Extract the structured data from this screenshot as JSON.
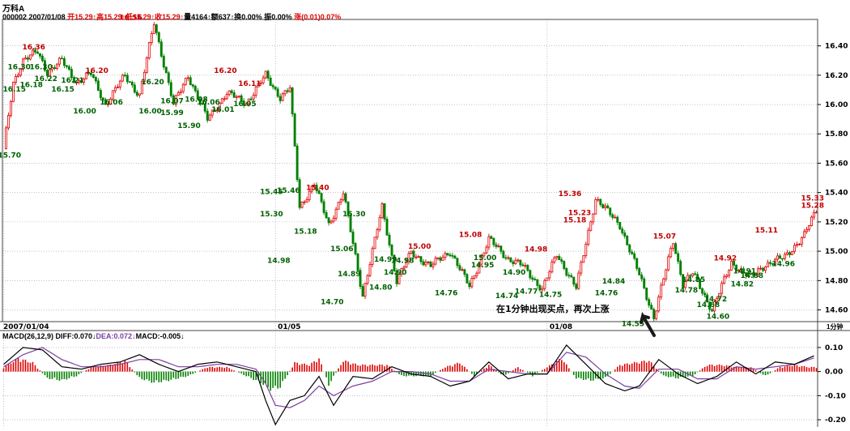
{
  "header": {
    "stock_name": "万科A",
    "line2_prefix": "000002 2007/01/08 ",
    "line2_quote": "开15.29↑高15.29↑低15.29↑收15.29↑",
    "line2_mid": "量4164↑额637↑换0.00% 振0.00% ",
    "line2_change": "涨(0.01)0.07%"
  },
  "macd_header": {
    "title": "MACD(26,12,9) ",
    "diff": "DIFF:0.070↓",
    "dea": "DEA:0.072↓",
    "macd": "MACD:-0.005↓"
  },
  "annotation": "在1分钟出现买点，再次上涨",
  "period_label": "1分钟",
  "colors": {
    "up": "#e00000",
    "down": "#008000",
    "diff_line": "#000000",
    "dea_line": "#7b3fa0",
    "grid": "#9a9a9a"
  },
  "chart_data": [
    {
      "type": "line",
      "title": "万科A 1分钟",
      "ylim": [
        14.52,
        16.58
      ],
      "y_ticks": [
        "16.40",
        "16.20",
        "16.00",
        "15.80",
        "15.60",
        "15.40",
        "15.20",
        "15.00",
        "14.80",
        "14.60"
      ],
      "y_tick_values": [
        16.4,
        16.2,
        16.0,
        15.8,
        15.6,
        15.4,
        15.2,
        15.0,
        14.8,
        14.6
      ],
      "x_ticks": [
        "2007/01/04",
        "01/05",
        "01/08"
      ],
      "x_tick_index": [
        0,
        112,
        224
      ],
      "n_bars": 336,
      "series": [
        {
          "x": [
            0,
            4,
            8,
            14,
            18,
            24,
            30,
            36,
            42,
            50,
            56,
            62,
            70,
            76,
            84,
            92,
            100,
            108,
            114,
            118,
            122,
            128,
            134,
            140,
            148,
            156,
            162,
            168,
            176,
            184,
            192,
            200,
            208,
            214,
            222,
            228,
            236,
            244,
            254,
            262,
            268,
            276,
            280,
            284,
            292,
            300,
            308,
            314,
            322,
            330,
            335
          ],
          "values": [
            15.7,
            16.15,
            16.3,
            16.36,
            16.22,
            16.3,
            16.15,
            16.21,
            16.0,
            16.2,
            16.06,
            16.56,
            16.0,
            16.2,
            15.9,
            16.08,
            16.01,
            16.2,
            16.05,
            16.11,
            15.3,
            15.46,
            15.18,
            15.4,
            14.7,
            15.3,
            14.8,
            14.99,
            14.9,
            15.0,
            14.76,
            15.08,
            14.95,
            14.9,
            14.74,
            14.98,
            14.75,
            15.36,
            15.18,
            14.84,
            14.55,
            15.07,
            14.78,
            14.85,
            14.6,
            14.92,
            14.82,
            14.91,
            14.96,
            15.11,
            15.28
          ]
        }
      ],
      "annotations": [
        {
          "x": 1,
          "value": 15.7,
          "label": "15.70"
        },
        {
          "x": 3,
          "value": 16.15,
          "label": "16.15"
        },
        {
          "x": 5,
          "value": 16.3,
          "label": "16.30"
        },
        {
          "x": 11,
          "value": 16.36,
          "label": "16.36"
        },
        {
          "x": 14,
          "value": 16.3,
          "label": "16.30"
        },
        {
          "x": 10,
          "value": 16.18,
          "label": "16.18"
        },
        {
          "x": 16,
          "value": 16.22,
          "label": "16.22"
        },
        {
          "x": 23,
          "value": 16.15,
          "label": "16.15"
        },
        {
          "x": 27,
          "value": 16.21,
          "label": "16.21"
        },
        {
          "x": 32,
          "value": 16.0,
          "label": "16.00"
        },
        {
          "x": 37,
          "value": 16.2,
          "label": "16.20"
        },
        {
          "x": 43,
          "value": 16.06,
          "label": "16.06"
        },
        {
          "x": 51,
          "value": 16.56,
          "label": "16.56"
        },
        {
          "x": 60,
          "value": 16.2,
          "label": "16.20"
        },
        {
          "x": 59,
          "value": 16.0,
          "label": "16.00"
        },
        {
          "x": 68,
          "value": 16.07,
          "label": "16.07"
        },
        {
          "x": 68,
          "value": 15.99,
          "label": "15.99"
        },
        {
          "x": 75,
          "value": 15.9,
          "label": "15.90"
        },
        {
          "x": 78,
          "value": 16.08,
          "label": "16.08"
        },
        {
          "x": 83,
          "value": 16.06,
          "label": "16.06"
        },
        {
          "x": 89,
          "value": 16.01,
          "label": "16.01"
        },
        {
          "x": 90,
          "value": 16.2,
          "label": "16.20"
        },
        {
          "x": 98,
          "value": 16.05,
          "label": "16.05"
        },
        {
          "x": 100,
          "value": 16.11,
          "label": "16.11"
        },
        {
          "x": 109,
          "value": 15.3,
          "label": "15.30"
        },
        {
          "x": 109,
          "value": 15.45,
          "label": "15.45"
        },
        {
          "x": 116,
          "value": 15.46,
          "label": "15.46"
        },
        {
          "x": 112,
          "value": 14.98,
          "label": "14.98"
        },
        {
          "x": 123,
          "value": 15.18,
          "label": "15.18"
        },
        {
          "x": 128,
          "value": 15.4,
          "label": "15.40"
        },
        {
          "x": 134,
          "value": 14.7,
          "label": "14.70"
        },
        {
          "x": 138,
          "value": 15.06,
          "label": "15.06"
        },
        {
          "x": 141,
          "value": 14.89,
          "label": "14.89"
        },
        {
          "x": 143,
          "value": 15.3,
          "label": "15.30"
        },
        {
          "x": 154,
          "value": 14.8,
          "label": "14.80"
        },
        {
          "x": 156,
          "value": 14.99,
          "label": "14.99"
        },
        {
          "x": 160,
          "value": 14.9,
          "label": "14.90"
        },
        {
          "x": 163,
          "value": 14.98,
          "label": "14.98"
        },
        {
          "x": 170,
          "value": 15.0,
          "label": "15.00"
        },
        {
          "x": 181,
          "value": 14.76,
          "label": "14.76"
        },
        {
          "x": 191,
          "value": 15.08,
          "label": "15.08"
        },
        {
          "x": 196,
          "value": 14.95,
          "label": "14.95"
        },
        {
          "x": 197,
          "value": 15.0,
          "label": "15.00"
        },
        {
          "x": 206,
          "value": 14.74,
          "label": "14.74"
        },
        {
          "x": 209,
          "value": 14.9,
          "label": "14.90"
        },
        {
          "x": 214,
          "value": 14.77,
          "label": "14.77"
        },
        {
          "x": 218,
          "value": 14.98,
          "label": "14.98"
        },
        {
          "x": 224,
          "value": 14.75,
          "label": "14.75"
        },
        {
          "x": 232,
          "value": 15.36,
          "label": "15.36"
        },
        {
          "x": 234,
          "value": 15.18,
          "label": "15.18"
        },
        {
          "x": 236,
          "value": 15.23,
          "label": "15.23"
        },
        {
          "x": 247,
          "value": 14.76,
          "label": "14.76"
        },
        {
          "x": 250,
          "value": 14.84,
          "label": "14.84"
        },
        {
          "x": 258,
          "value": 14.55,
          "label": "14.55"
        },
        {
          "x": 271,
          "value": 15.07,
          "label": "15.07"
        },
        {
          "x": 280,
          "value": 14.78,
          "label": "14.78"
        },
        {
          "x": 283,
          "value": 14.85,
          "label": "14.85"
        },
        {
          "x": 289,
          "value": 14.68,
          "label": "14.68"
        },
        {
          "x": 292,
          "value": 14.72,
          "label": "14.72"
        },
        {
          "x": 293,
          "value": 14.6,
          "label": "14.60"
        },
        {
          "x": 296,
          "value": 14.92,
          "label": "14.92"
        },
        {
          "x": 303,
          "value": 14.82,
          "label": "14.82"
        },
        {
          "x": 304,
          "value": 14.91,
          "label": "14.91"
        },
        {
          "x": 307,
          "value": 14.88,
          "label": "14.88"
        },
        {
          "x": 313,
          "value": 15.11,
          "label": "15.11"
        },
        {
          "x": 320,
          "value": 14.96,
          "label": "14.96"
        },
        {
          "x": 332,
          "value": 15.33,
          "label": "15.33"
        },
        {
          "x": 332,
          "value": 15.28,
          "label": "15.28"
        }
      ]
    },
    {
      "type": "bar",
      "title": "MACD(26,12,9)",
      "ylim": [
        -0.23,
        0.13
      ],
      "y_ticks": [
        "0.10",
        "0.00",
        "-0.10",
        "-0.20"
      ],
      "y_tick_values": [
        0.1,
        0.0,
        -0.1,
        -0.2
      ],
      "diff": {
        "x": [
          0,
          8,
          16,
          24,
          32,
          40,
          48,
          56,
          64,
          72,
          80,
          88,
          96,
          104,
          108,
          112,
          118,
          124,
          130,
          136,
          144,
          152,
          160,
          168,
          176,
          184,
          192,
          200,
          208,
          216,
          224,
          232,
          240,
          248,
          256,
          262,
          270,
          278,
          286,
          294,
          302,
          310,
          318,
          326,
          335
        ],
        "values": [
          0.03,
          0.1,
          0.09,
          0.02,
          0.01,
          0.03,
          0.04,
          0.07,
          0.03,
          0.0,
          0.03,
          0.04,
          0.02,
          0.0,
          -0.12,
          -0.22,
          -0.12,
          -0.1,
          -0.02,
          -0.14,
          -0.02,
          -0.03,
          0.02,
          -0.01,
          -0.02,
          -0.06,
          -0.04,
          0.04,
          -0.03,
          -0.01,
          -0.01,
          0.11,
          0.03,
          -0.05,
          -0.08,
          -0.06,
          0.05,
          -0.01,
          -0.05,
          -0.02,
          0.04,
          -0.01,
          0.04,
          0.03,
          0.07
        ]
      },
      "dea": {
        "x": [
          0,
          8,
          16,
          24,
          32,
          40,
          48,
          56,
          64,
          72,
          80,
          88,
          96,
          104,
          108,
          112,
          118,
          124,
          130,
          136,
          144,
          152,
          160,
          168,
          176,
          184,
          192,
          200,
          208,
          216,
          224,
          232,
          240,
          248,
          256,
          262,
          270,
          278,
          286,
          294,
          302,
          310,
          318,
          326,
          335
        ],
        "values": [
          0.02,
          0.07,
          0.1,
          0.05,
          0.02,
          0.02,
          0.03,
          0.05,
          0.05,
          0.02,
          0.02,
          0.03,
          0.03,
          0.01,
          -0.05,
          -0.14,
          -0.15,
          -0.12,
          -0.06,
          -0.1,
          -0.06,
          -0.04,
          0.0,
          0.0,
          -0.01,
          -0.04,
          -0.04,
          0.01,
          0.0,
          -0.01,
          -0.01,
          0.08,
          0.06,
          -0.01,
          -0.06,
          -0.07,
          0.01,
          0.01,
          -0.03,
          -0.03,
          0.02,
          0.01,
          0.02,
          0.03,
          0.06
        ]
      },
      "histogram": {
        "x": [
          0,
          6,
          12,
          18,
          24,
          30,
          36,
          44,
          50,
          56,
          62,
          68,
          76,
          84,
          92,
          100,
          106,
          110,
          114,
          120,
          126,
          130,
          134,
          140,
          146,
          152,
          158,
          164,
          170,
          176,
          182,
          188,
          194,
          200,
          206,
          212,
          218,
          224,
          230,
          236,
          242,
          248,
          254,
          260,
          266,
          272,
          278,
          284,
          290,
          296,
          302,
          308,
          314,
          320,
          326,
          332
        ],
        "values": [
          0.02,
          0.06,
          0.04,
          -0.03,
          -0.04,
          -0.02,
          0.02,
          0.03,
          0.05,
          -0.03,
          -0.05,
          -0.04,
          -0.02,
          0.02,
          0.02,
          -0.02,
          -0.05,
          -0.08,
          -0.07,
          0.04,
          0.03,
          0.06,
          -0.06,
          0.05,
          0.03,
          0.03,
          0.03,
          -0.02,
          -0.02,
          -0.02,
          0.02,
          0.04,
          -0.02,
          0.03,
          -0.02,
          0.02,
          -0.02,
          0.02,
          0.06,
          -0.03,
          -0.04,
          -0.03,
          0.03,
          0.04,
          0.05,
          -0.02,
          -0.03,
          -0.02,
          0.03,
          0.03,
          0.02,
          0.02,
          -0.02,
          0.02,
          0.03,
          0.02
        ]
      }
    }
  ]
}
